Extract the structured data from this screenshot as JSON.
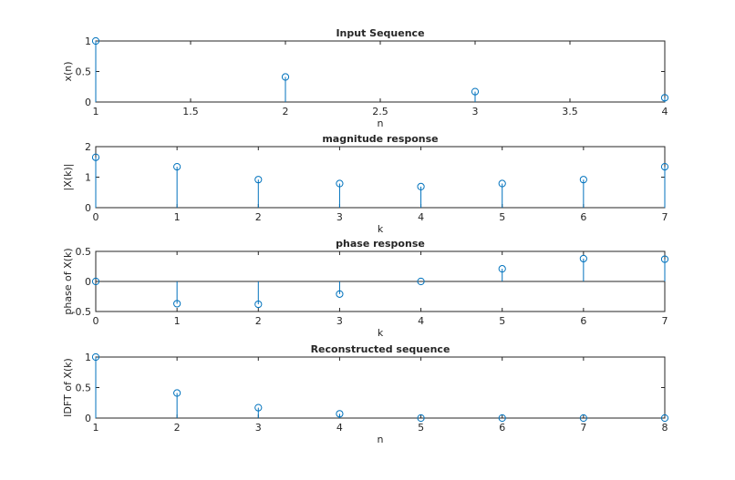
{
  "chart_data": [
    {
      "type": "stem",
      "title": "Input Sequence",
      "xlabel": "n",
      "ylabel": "x(n)",
      "xlim": [
        1,
        4
      ],
      "ylim": [
        0,
        1
      ],
      "xticks": [
        "1",
        "1.5",
        "2",
        "2.5",
        "3",
        "3.5",
        "4"
      ],
      "yticks": [
        "0",
        "0.5",
        "1"
      ],
      "x": [
        1,
        2,
        3,
        4
      ],
      "y": [
        1.0,
        0.41,
        0.17,
        0.07
      ],
      "color": "#0072bd"
    },
    {
      "type": "stem",
      "title": "magnitude response",
      "xlabel": "k",
      "ylabel": "|X(k)|",
      "xlim": [
        0,
        7
      ],
      "ylim": [
        0,
        2
      ],
      "xticks": [
        "0",
        "1",
        "2",
        "3",
        "4",
        "5",
        "6",
        "7"
      ],
      "yticks": [
        "0",
        "1",
        "2"
      ],
      "x": [
        0,
        1,
        2,
        3,
        4,
        5,
        6,
        7
      ],
      "y": [
        1.65,
        1.34,
        0.92,
        0.79,
        0.69,
        0.79,
        0.92,
        1.34
      ],
      "color": "#0072bd"
    },
    {
      "type": "stem",
      "title": "phase response",
      "xlabel": "k",
      "ylabel": "phase of X(k)",
      "xlim": [
        0,
        7
      ],
      "ylim": [
        -0.5,
        0.5
      ],
      "xticks": [
        "0",
        "1",
        "2",
        "3",
        "4",
        "5",
        "6",
        "7"
      ],
      "yticks": [
        "-0.5",
        "0",
        "0.5"
      ],
      "x": [
        0,
        1,
        2,
        3,
        4,
        5,
        6,
        7
      ],
      "y": [
        0,
        -0.37,
        -0.38,
        -0.21,
        0,
        0.21,
        0.38,
        0.37
      ],
      "color": "#0072bd"
    },
    {
      "type": "stem",
      "title": "Reconstructed sequence",
      "xlabel": "n",
      "ylabel": "IDFT of X(k)",
      "xlim": [
        1,
        8
      ],
      "ylim": [
        0,
        1
      ],
      "xticks": [
        "1",
        "2",
        "3",
        "4",
        "5",
        "6",
        "7",
        "8"
      ],
      "yticks": [
        "0",
        "0.5",
        "1"
      ],
      "x": [
        1,
        2,
        3,
        4,
        5,
        6,
        7,
        8
      ],
      "y": [
        1.0,
        0.41,
        0.17,
        0.07,
        0,
        0,
        0,
        0
      ],
      "color": "#0072bd"
    }
  ]
}
